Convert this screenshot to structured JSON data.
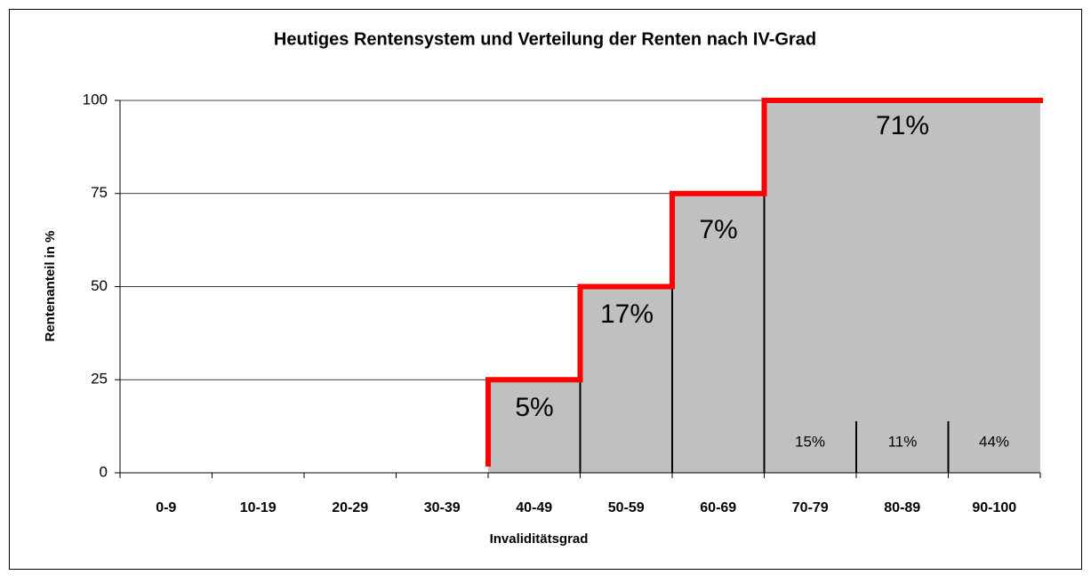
{
  "chart_data": {
    "type": "bar",
    "title": "Heutiges Rentensystem und Verteilung der Renten nach IV-Grad",
    "x_label": "Invaliditätsgrad",
    "y_label": "Rentenanteil in %",
    "categories": [
      "0-9",
      "10-19",
      "20-29",
      "30-39",
      "40-49",
      "50-59",
      "60-69",
      "70-79",
      "80-89",
      "90-100"
    ],
    "values": [
      0,
      0,
      0,
      0,
      25,
      50,
      75,
      100,
      100,
      100
    ],
    "color": "#c0c0c0",
    "line_color": "#ff0000",
    "ylim": [
      0,
      100
    ],
    "yticks": [
      0,
      25,
      50,
      75,
      100
    ],
    "grid": true,
    "annotations": [
      "5%",
      "17%",
      "7%",
      "71%",
      "15%",
      "11%",
      "44%"
    ]
  }
}
